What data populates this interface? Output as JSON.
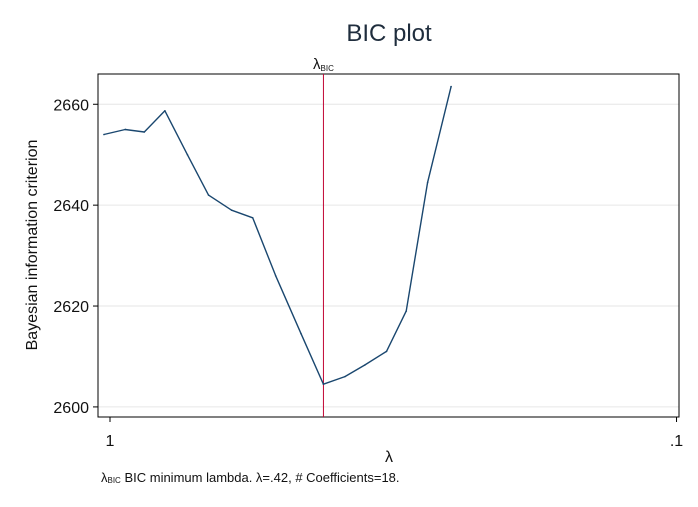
{
  "chart_data": {
    "type": "line",
    "title": "BIC plot",
    "xlabel": "λ",
    "ylabel": "Bayesian information criterion",
    "x_scale": "log-reversed",
    "xlim": [
      1.05,
      0.099
    ],
    "ylim": [
      2598,
      2666
    ],
    "x_ticks": [
      {
        "value": 1,
        "label": "1"
      },
      {
        "value": 0.1,
        "label": ".1"
      }
    ],
    "y_ticks": [
      {
        "value": 2600,
        "label": "2600"
      },
      {
        "value": 2620,
        "label": "2620"
      },
      {
        "value": 2640,
        "label": "2640"
      },
      {
        "value": 2660,
        "label": "2660"
      }
    ],
    "grid": true,
    "line_color": "#1a476f",
    "marker_color": "#c10534",
    "marker": {
      "x": 0.42,
      "label_main": "λ",
      "label_sub": "BIC"
    },
    "series": [
      {
        "x": [
          1.025,
          0.94,
          0.87,
          0.8,
          0.73,
          0.67,
          0.61,
          0.56,
          0.51,
          0.46,
          0.42,
          0.385,
          0.355,
          0.325,
          0.3,
          0.275,
          0.25
        ],
        "y": [
          2654,
          2655,
          2654.5,
          2658.7,
          2650,
          2642,
          2639,
          2637.5,
          2626,
          2614.5,
          2604.5,
          2606,
          2608.3,
          2611,
          2619,
          2644.5,
          2663.5
        ]
      }
    ],
    "note": {
      "lambda_main": "λ",
      "lambda_sub": "BIC",
      "text": "  BIC minimum lambda. λ=.42, # Coefficients=18."
    }
  }
}
